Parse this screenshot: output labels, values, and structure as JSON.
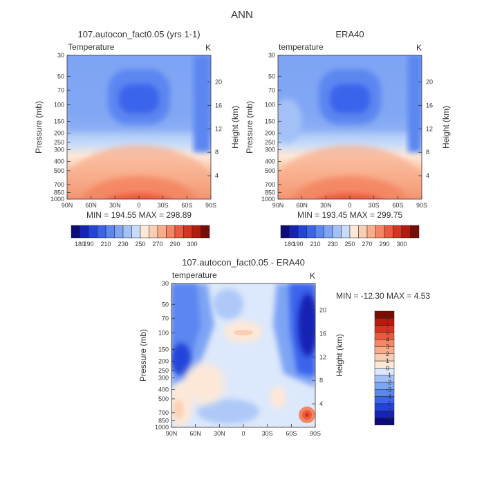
{
  "figure_title": "ANN",
  "chart_data": [
    {
      "type": "heatmap",
      "title": "107.autocon_fact0.05 (yrs 1-1)",
      "field_label": "Temperature",
      "units": "K",
      "ylabel": "Pressure (mb)",
      "y2label": "Height (km)",
      "x_ticks": [
        "90N",
        "60N",
        "30N",
        "0",
        "30S",
        "60S",
        "90S"
      ],
      "pressure_ticks": [
        "30",
        "50",
        "70",
        "100",
        "150",
        "200",
        "250",
        "300",
        "400",
        "500",
        "700",
        "850",
        "1000"
      ],
      "height_ticks": [
        "20",
        "16",
        "12",
        "8",
        "4"
      ],
      "stats": "MIN = 194.55   MAX = 298.89",
      "min": 194.55,
      "max": 298.89,
      "colorbar_labels": [
        "180",
        "190",
        "210",
        "230",
        "250",
        "270",
        "290",
        "300"
      ],
      "colorbar_colors": [
        "#0b0c7a",
        "#1524b4",
        "#2244d9",
        "#3b64ec",
        "#5c86f0",
        "#7ea4f4",
        "#a3c1f7",
        "#c8dcfa",
        "#fde8d8",
        "#fbcdb2",
        "#f8ac8a",
        "#f48664",
        "#ea5a3e",
        "#d43420",
        "#b51c0e",
        "#7a0c06"
      ]
    },
    {
      "type": "heatmap",
      "title": "ERA40",
      "field_label": "temperature",
      "units": "K",
      "ylabel": "Pressure (mb)",
      "y2label": "Height (km)",
      "x_ticks": [
        "90N",
        "60N",
        "30N",
        "0",
        "30S",
        "60S",
        "90S"
      ],
      "pressure_ticks": [
        "30",
        "50",
        "70",
        "100",
        "150",
        "200",
        "250",
        "300",
        "400",
        "500",
        "700",
        "850",
        "1000"
      ],
      "height_ticks": [
        "20",
        "16",
        "12",
        "8",
        "4"
      ],
      "stats": "MIN = 193.45   MAX = 299.75",
      "min": 193.45,
      "max": 299.75,
      "colorbar_labels": [
        "180",
        "190",
        "210",
        "230",
        "250",
        "270",
        "290",
        "300"
      ],
      "colorbar_colors": [
        "#0b0c7a",
        "#1524b4",
        "#2244d9",
        "#3b64ec",
        "#5c86f0",
        "#7ea4f4",
        "#a3c1f7",
        "#c8dcfa",
        "#fde8d8",
        "#fbcdb2",
        "#f8ac8a",
        "#f48664",
        "#ea5a3e",
        "#d43420",
        "#b51c0e",
        "#7a0c06"
      ]
    },
    {
      "type": "heatmap",
      "title": "107.autocon_fact0.05 - ERA40",
      "field_label": "temperature",
      "units": "K",
      "ylabel": "Pressure (mb)",
      "y2label": "Height (km)",
      "x_ticks": [
        "90N",
        "60N",
        "30N",
        "0",
        "30S",
        "60S",
        "90S"
      ],
      "pressure_ticks": [
        "30",
        "50",
        "70",
        "100",
        "150",
        "200",
        "250",
        "300",
        "400",
        "500",
        "700",
        "850",
        "1000"
      ],
      "height_ticks": [
        "20",
        "16",
        "12",
        "8",
        "4"
      ],
      "stats": "MIN = -12.30   MAX =   4.53",
      "min": -12.3,
      "max": 4.53,
      "colorbar_labels": [
        "9",
        "7",
        "5",
        "4",
        "3",
        "2",
        "1",
        "0",
        "-1",
        "-2",
        "-3",
        "-4",
        "-5",
        "-7",
        "-9"
      ],
      "colorbar_colors": [
        "#7a0c06",
        "#b51c0e",
        "#d43420",
        "#ea5a3e",
        "#f48664",
        "#f8ac8a",
        "#fbcdb2",
        "#fde8d8",
        "#dce8fb",
        "#a3c1f7",
        "#7ea4f4",
        "#5c86f0",
        "#3b64ec",
        "#2244d9",
        "#1524b4",
        "#0b0c7a"
      ]
    }
  ]
}
